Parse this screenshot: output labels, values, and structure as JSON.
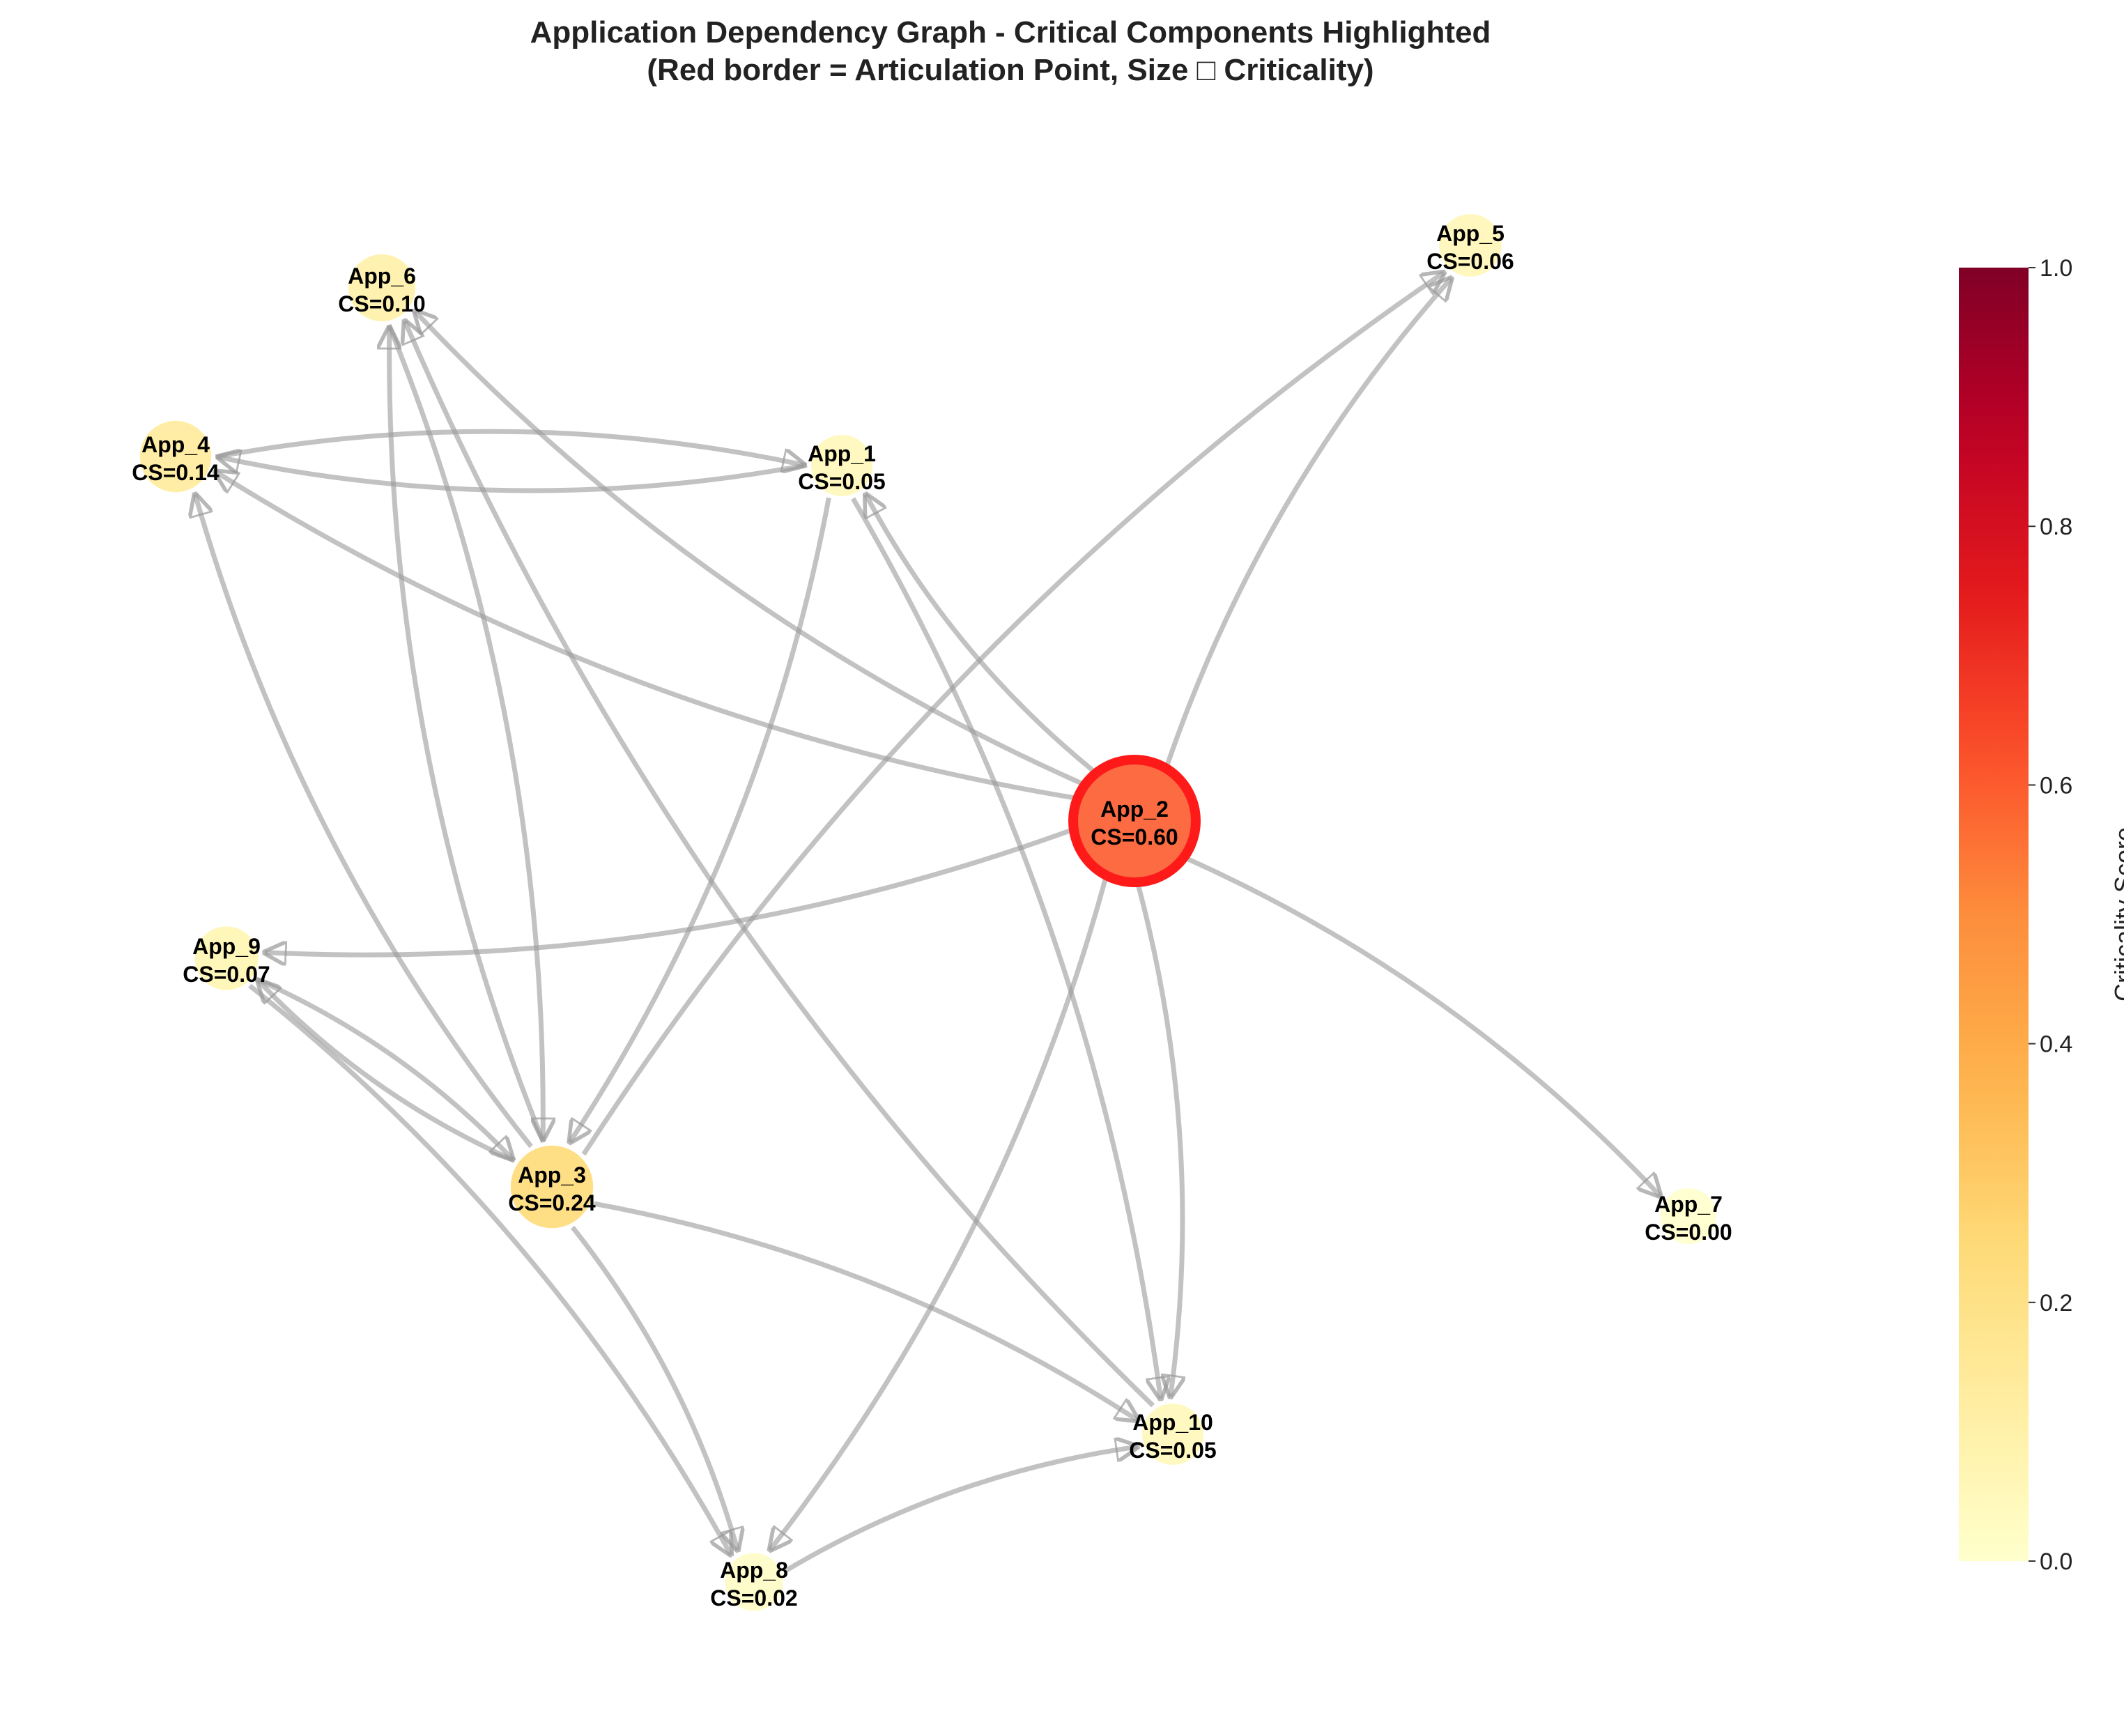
{
  "title": {
    "line1": "Application Dependency Graph - Critical Components Highlighted",
    "line2": "(Red border = Articulation Point, Size □ Criticality)"
  },
  "legend_colors": {
    "edge": "#999999",
    "articulation_border": "#ff1a1a",
    "cmap": [
      "#ffffcc",
      "#ffeda0",
      "#fed976",
      "#feb24c",
      "#fd8d3c",
      "#fc4e2a",
      "#e31a1c",
      "#bd0026",
      "#800026"
    ]
  },
  "nodes": [
    {
      "id": "App_1",
      "label": "App_1",
      "cs_label": "CS=0.05",
      "score": 0.05,
      "articulation": false
    },
    {
      "id": "App_2",
      "label": "App_2",
      "cs_label": "CS=0.60",
      "score": 0.6,
      "articulation": true
    },
    {
      "id": "App_3",
      "label": "App_3",
      "cs_label": "CS=0.24",
      "score": 0.24,
      "articulation": false
    },
    {
      "id": "App_4",
      "label": "App_4",
      "cs_label": "CS=0.14",
      "score": 0.14,
      "articulation": false
    },
    {
      "id": "App_5",
      "label": "App_5",
      "cs_label": "CS=0.06",
      "score": 0.06,
      "articulation": false
    },
    {
      "id": "App_6",
      "label": "App_6",
      "cs_label": "CS=0.10",
      "score": 0.1,
      "articulation": false
    },
    {
      "id": "App_7",
      "label": "App_7",
      "cs_label": "CS=0.00",
      "score": 0.0,
      "articulation": false
    },
    {
      "id": "App_8",
      "label": "App_8",
      "cs_label": "CS=0.02",
      "score": 0.02,
      "articulation": false
    },
    {
      "id": "App_9",
      "label": "App_9",
      "cs_label": "CS=0.07",
      "score": 0.07,
      "articulation": false
    },
    {
      "id": "App_10",
      "label": "App_10",
      "cs_label": "CS=0.05",
      "score": 0.05,
      "articulation": false
    }
  ],
  "edges": [
    {
      "from": "App_2",
      "to": "App_1"
    },
    {
      "from": "App_2",
      "to": "App_4"
    },
    {
      "from": "App_2",
      "to": "App_5"
    },
    {
      "from": "App_2",
      "to": "App_6"
    },
    {
      "from": "App_2",
      "to": "App_7"
    },
    {
      "from": "App_2",
      "to": "App_8"
    },
    {
      "from": "App_2",
      "to": "App_9"
    },
    {
      "from": "App_2",
      "to": "App_10"
    },
    {
      "from": "App_1",
      "to": "App_3"
    },
    {
      "from": "App_1",
      "to": "App_4"
    },
    {
      "from": "App_4",
      "to": "App_1"
    },
    {
      "from": "App_1",
      "to": "App_10"
    },
    {
      "from": "App_3",
      "to": "App_4"
    },
    {
      "from": "App_3",
      "to": "App_5"
    },
    {
      "from": "App_3",
      "to": "App_6"
    },
    {
      "from": "App_6",
      "to": "App_3"
    },
    {
      "from": "App_3",
      "to": "App_9"
    },
    {
      "from": "App_9",
      "to": "App_3"
    },
    {
      "from": "App_3",
      "to": "App_8"
    },
    {
      "from": "App_3",
      "to": "App_10"
    },
    {
      "from": "App_9",
      "to": "App_8"
    },
    {
      "from": "App_10",
      "to": "App_6"
    },
    {
      "from": "App_8",
      "to": "App_10"
    }
  ],
  "colorbar": {
    "label": "Criticality Score",
    "min": 0.0,
    "max": 1.0,
    "ticks": [
      "0.0",
      "0.2",
      "0.4",
      "0.6",
      "0.8",
      "1.0"
    ]
  }
}
